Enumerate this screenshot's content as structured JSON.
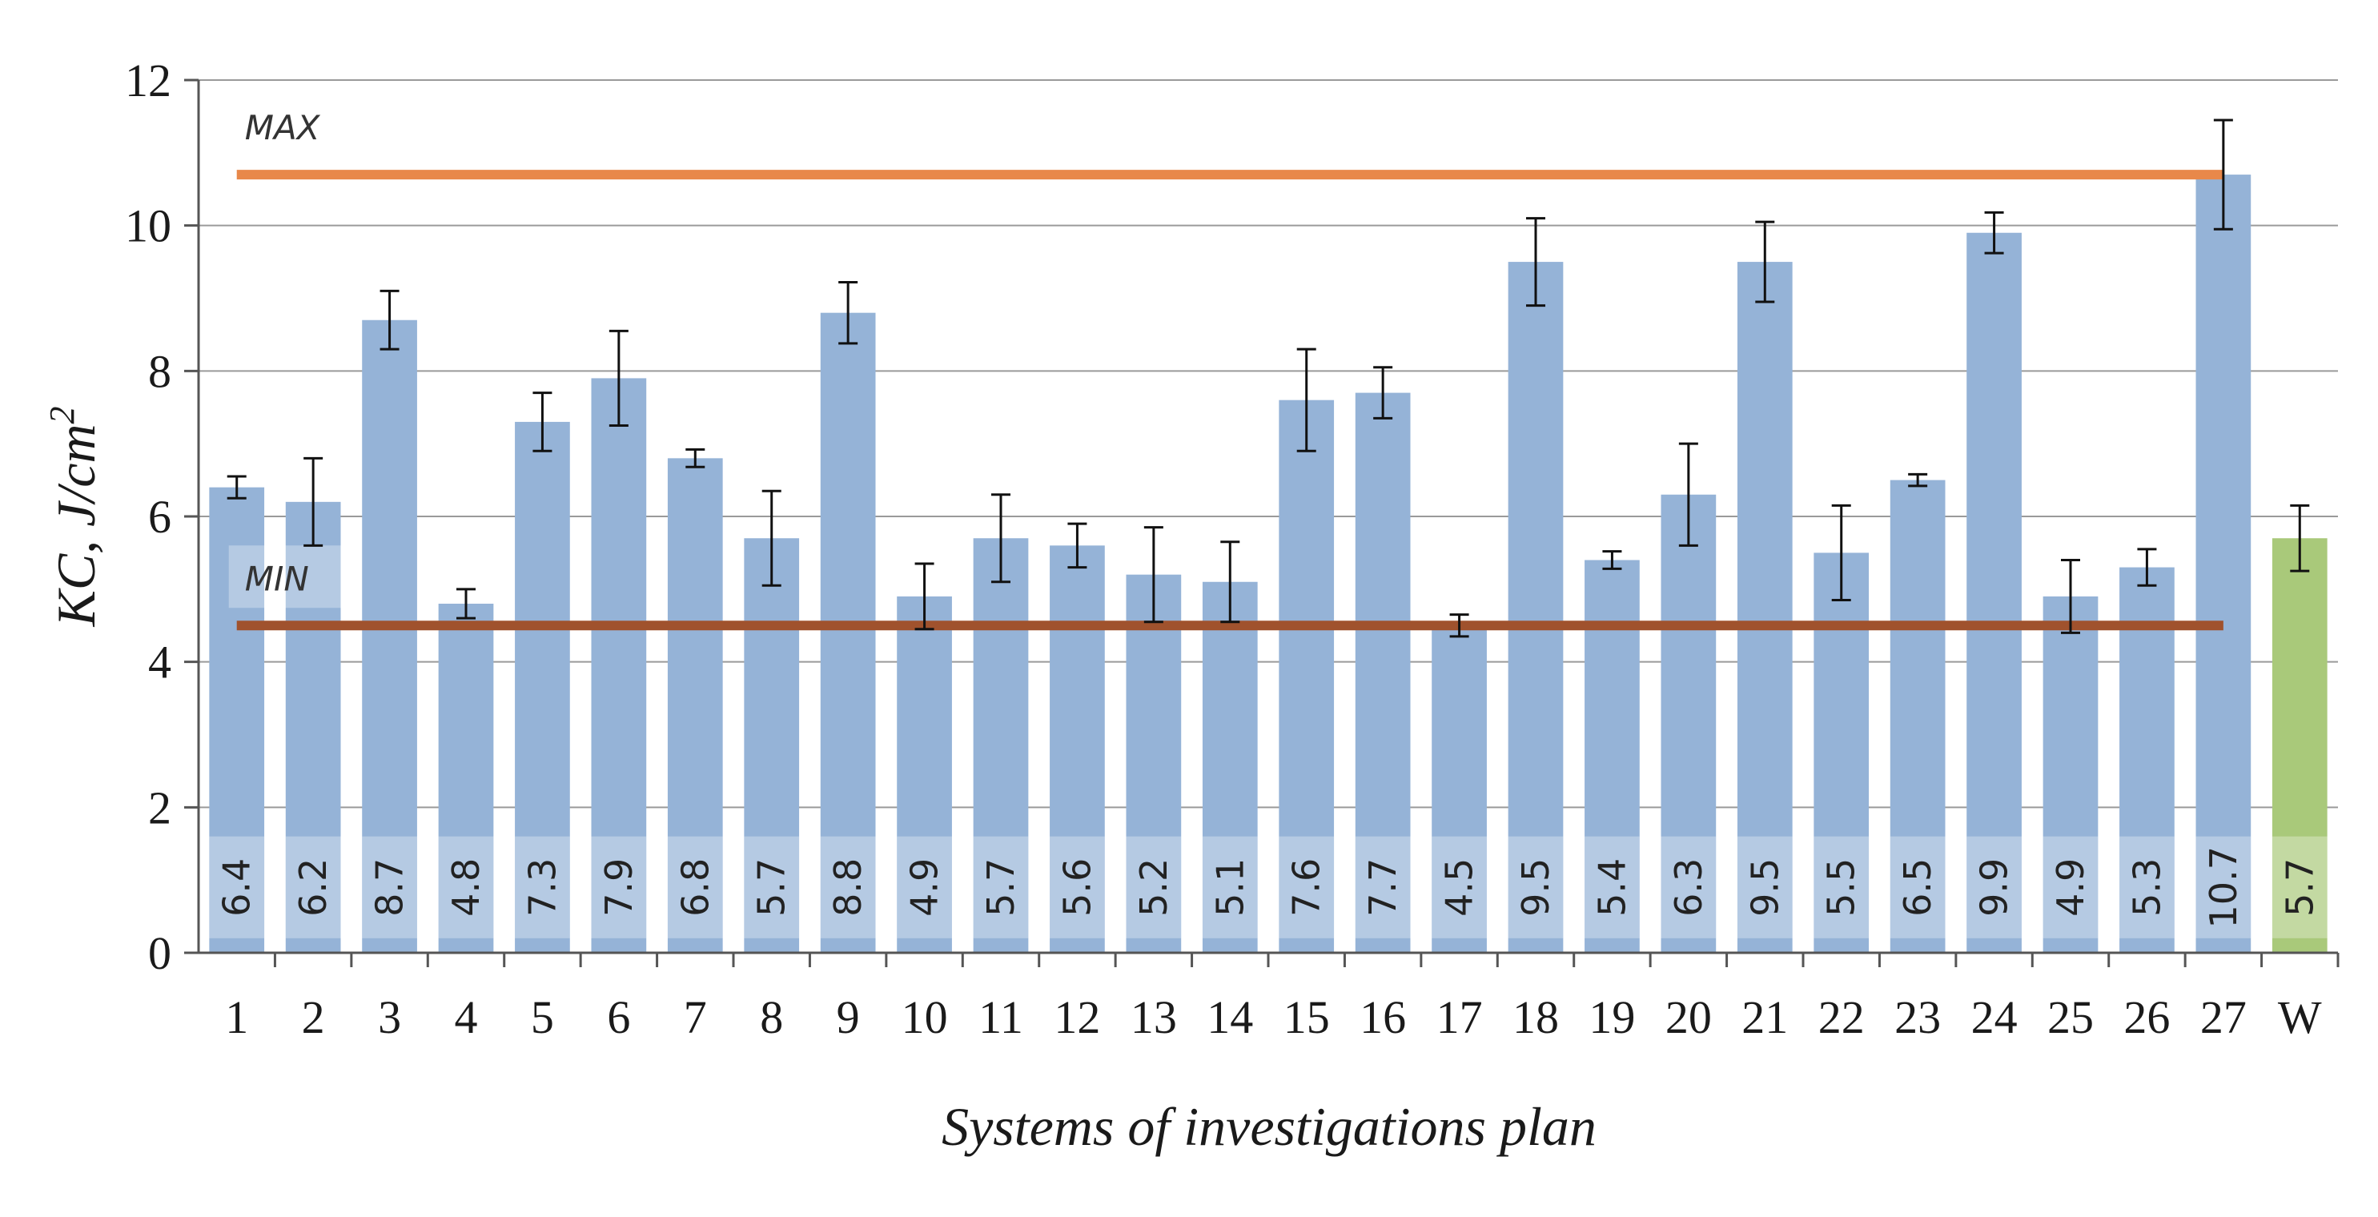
{
  "chart_data": {
    "type": "bar",
    "xlabel": "Systems of investigations plan",
    "ylabel": "KC, J/cm",
    "ylabel_sup": "2",
    "ylim": [
      0,
      12
    ],
    "yticks": [
      0,
      2,
      4,
      6,
      8,
      10,
      12
    ],
    "grid": true,
    "categories": [
      "1",
      "2",
      "3",
      "4",
      "5",
      "6",
      "7",
      "8",
      "9",
      "10",
      "11",
      "12",
      "13",
      "14",
      "15",
      "16",
      "17",
      "18",
      "19",
      "20",
      "21",
      "22",
      "23",
      "24",
      "25",
      "26",
      "27",
      "W"
    ],
    "values": [
      6.4,
      6.2,
      8.7,
      4.8,
      7.3,
      7.9,
      6.8,
      5.7,
      8.8,
      4.9,
      5.7,
      5.6,
      5.2,
      5.1,
      7.6,
      7.7,
      4.5,
      9.5,
      5.4,
      6.3,
      9.5,
      5.5,
      6.5,
      9.9,
      4.9,
      5.3,
      10.7,
      5.7
    ],
    "value_labels": [
      "6.4",
      "6.2",
      "8.7",
      "4.8",
      "7.3",
      "7.9",
      "6.8",
      "5.7",
      "8.8",
      "4.9",
      "5.7",
      "5.6",
      "5.2",
      "5.1",
      "7.6",
      "7.7",
      "4.5",
      "9.5",
      "5.4",
      "6.3",
      "9.5",
      "5.5",
      "6.5",
      "9.9",
      "4.9",
      "5.3",
      "10.7",
      "5.7"
    ],
    "errors": [
      0.15,
      0.6,
      0.4,
      0.2,
      0.4,
      0.65,
      0.12,
      0.65,
      0.42,
      0.45,
      0.6,
      0.3,
      0.65,
      0.55,
      0.7,
      0.35,
      0.15,
      0.6,
      0.12,
      0.7,
      0.55,
      0.65,
      0.08,
      0.28,
      0.5,
      0.25,
      0.75,
      0.45
    ],
    "reference_lines": [
      {
        "label": "MAX",
        "value": 10.7,
        "color": "#E8884A"
      },
      {
        "label": "MIN",
        "value": 4.5,
        "color": "#A0522D"
      }
    ],
    "colors": {
      "bar": "#95B3D7",
      "highlight_bar": "#A9C97A",
      "grid": "#9a9a9a",
      "error": "#111111"
    },
    "highlight_category": "W"
  }
}
